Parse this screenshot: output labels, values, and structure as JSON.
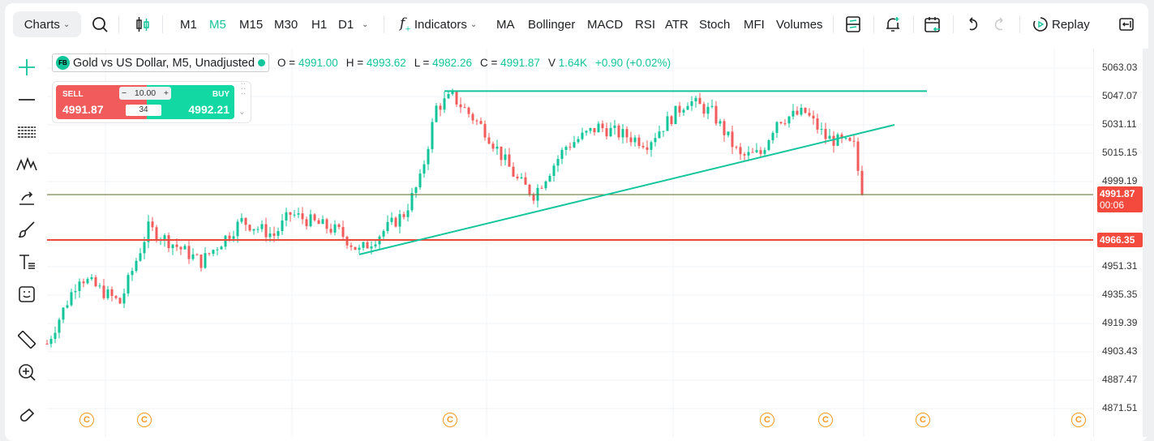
{
  "toolbar": {
    "charts": "Charts",
    "timeframes": [
      "M1",
      "M5",
      "M15",
      "M30",
      "H1",
      "D1"
    ],
    "active_timeframe": "M5",
    "indicators": "Indicators",
    "indicator_shortcuts": [
      "MA",
      "Bollinger",
      "MACD",
      "RSI",
      "ATR",
      "Stoch",
      "MFI",
      "Volumes"
    ],
    "replay": "Replay"
  },
  "legend": {
    "symbol_badge": "FB",
    "symbol": "Gold vs US Dollar, M5, Unadjusted",
    "o_label": "O =",
    "o": "4991.00",
    "h_label": "H =",
    "h": "4993.62",
    "l_label": "L =",
    "l": "4982.26",
    "c_label": "C =",
    "c": "4991.87",
    "v_label": "V",
    "v": "1.64K",
    "change": "+0.90 (+0.02%)"
  },
  "trade": {
    "sell_label": "SELL",
    "sell_price": "4991.87",
    "buy_label": "BUY",
    "buy_price": "4992.21",
    "lot": "10.00",
    "spread": "34",
    "minus": "−",
    "plus": "+"
  },
  "axis": {
    "ticks": [
      "5063.03",
      "5047.07",
      "5031.11",
      "5015.15",
      "4999.19",
      "4951.31",
      "4935.35",
      "4919.39",
      "4903.43",
      "4887.47",
      "4871.51"
    ],
    "current_price": "4991.87",
    "countdown": "00:06",
    "line_price": "4966.35"
  },
  "events": [
    "C",
    "C",
    "C",
    "C",
    "C",
    "C",
    "C"
  ],
  "colors": {
    "up": "#12c59a",
    "down": "#f25b5b",
    "accent": "#12c59a",
    "price_line": "#6b7d3f",
    "level_line": "#e8493d"
  },
  "chart_data": {
    "type": "candlestick",
    "price_min": 4871.51,
    "price_max": 5063.03,
    "close_path": [
      [
        0,
        4908
      ],
      [
        8,
        4946
      ],
      [
        18,
        4931
      ],
      [
        25,
        4973
      ],
      [
        38,
        4954
      ],
      [
        48,
        4977
      ],
      [
        56,
        4969
      ],
      [
        60,
        4981
      ],
      [
        72,
        4971
      ],
      [
        77,
        4960
      ],
      [
        88,
        4981
      ],
      [
        92,
        5000
      ],
      [
        96,
        5041
      ],
      [
        100,
        5047
      ],
      [
        108,
        5028
      ],
      [
        116,
        5000
      ],
      [
        120,
        4992
      ],
      [
        128,
        5019
      ],
      [
        136,
        5030
      ],
      [
        148,
        5021
      ],
      [
        158,
        5045
      ],
      [
        164,
        5038
      ],
      [
        171,
        5013
      ],
      [
        176,
        5015
      ],
      [
        180,
        5034
      ],
      [
        187,
        5038
      ],
      [
        192,
        5024
      ],
      [
        199,
        5019
      ],
      [
        201,
        4991.87
      ]
    ],
    "horizontal_lines": [
      4991.87,
      4966.35
    ],
    "trend_lines": [
      {
        "from": [
          98,
          5050.1
        ],
        "to": [
          217,
          5050.1
        ]
      },
      {
        "from": [
          77,
          4958.2
        ],
        "to": [
          209,
          5031.1
        ]
      }
    ]
  }
}
